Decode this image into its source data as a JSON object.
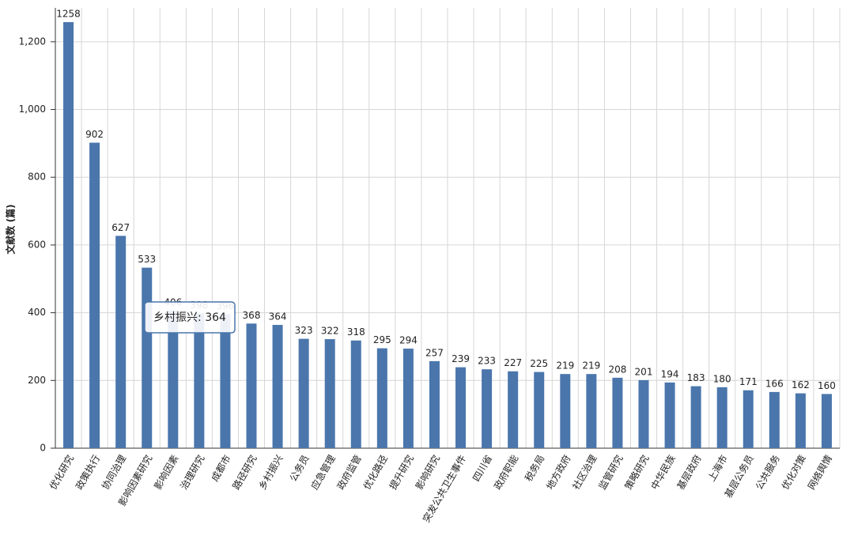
{
  "chart_data": {
    "type": "bar",
    "y_label": "文献数 (篇)",
    "categories": [
      "优化研究",
      "政策执行",
      "协同治理",
      "影响因素研究",
      "影响因素",
      "治理研究",
      "成都市",
      "路径研究",
      "乡村振兴",
      "公务员",
      "应急管理",
      "政府监管",
      "优化路径",
      "提升研究",
      "影响研究",
      "突发公共卫生事件",
      "四川省",
      "政府职能",
      "税务局",
      "地方政府",
      "社区治理",
      "监管研究",
      "策略研究",
      "中华民族",
      "基层政府",
      "上海市",
      "基层公务员",
      "公共服务",
      "优化对策",
      "网络舆情"
    ],
    "values": [
      1258,
      902,
      627,
      533,
      406,
      398,
      396,
      368,
      364,
      323,
      322,
      318,
      295,
      294,
      257,
      239,
      233,
      227,
      225,
      219,
      219,
      208,
      201,
      194,
      183,
      180,
      171,
      166,
      162,
      160
    ],
    "color": "#4a76ac",
    "ylim": [
      0,
      1300
    ],
    "yticks": [
      0,
      200,
      400,
      600,
      800,
      {
        "value": 1000,
        "label": "1,000"
      },
      {
        "value": 1200,
        "label": "1,200"
      }
    ],
    "grid": true,
    "tooltip": "乡村振兴: 364"
  }
}
